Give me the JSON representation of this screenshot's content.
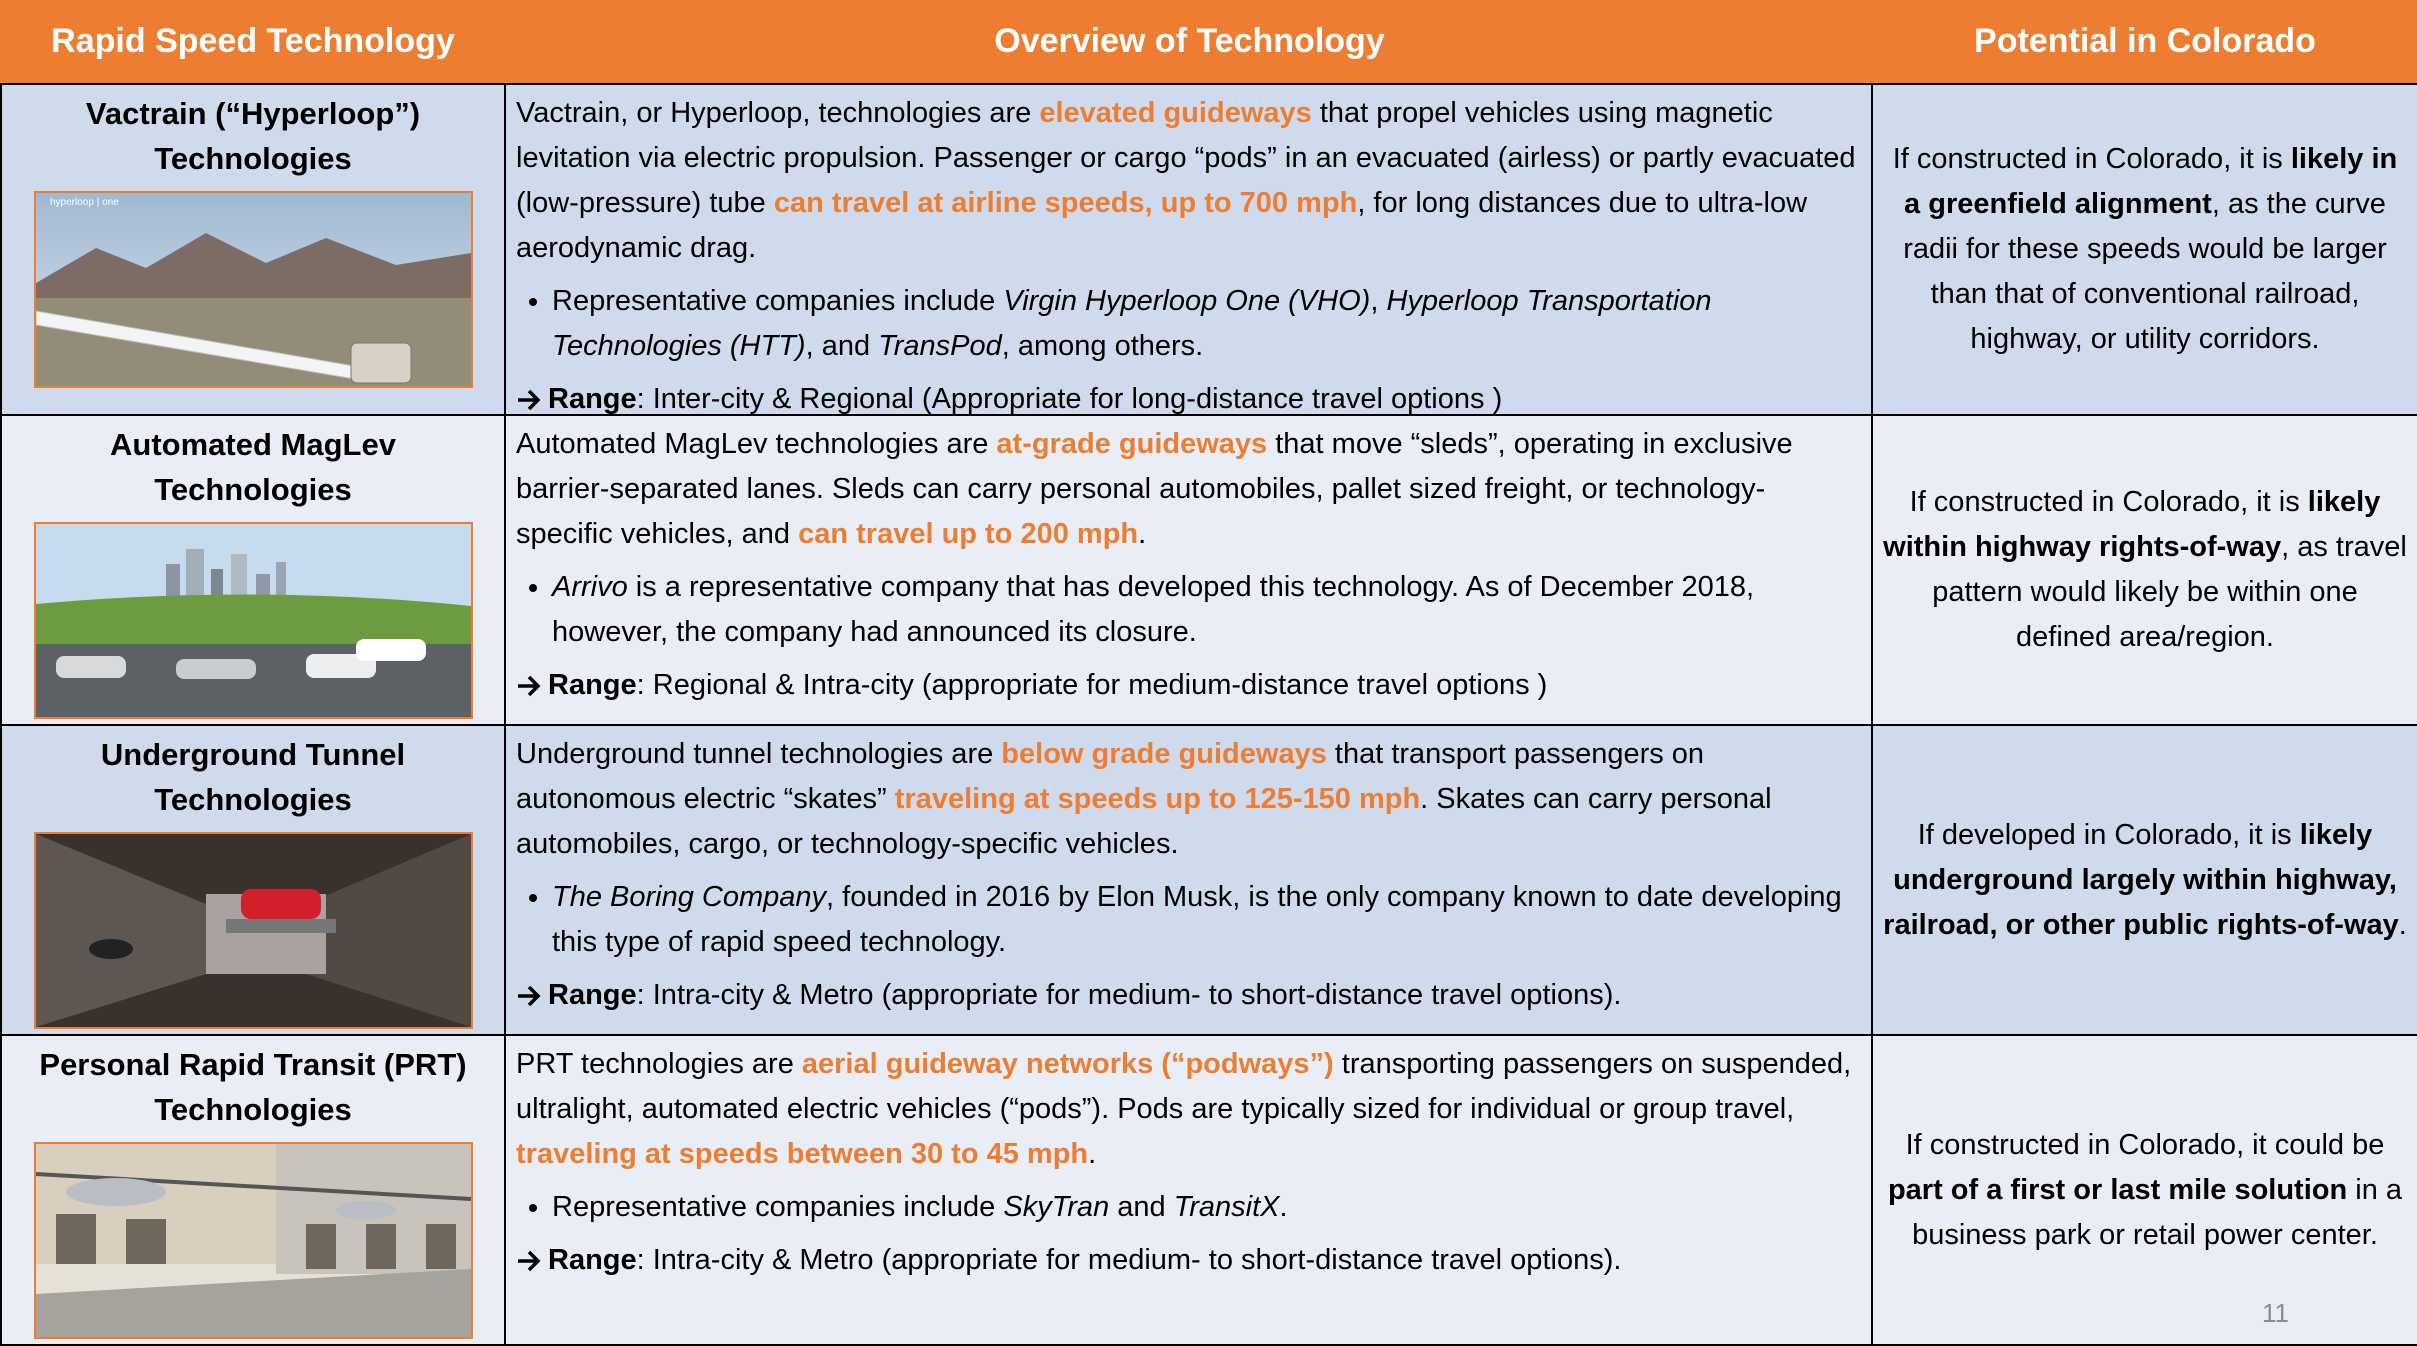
{
  "header": [
    "Rapid Speed Technology",
    "Overview of Technology",
    "Potential in Colorado"
  ],
  "rows": [
    {
      "technology": "Vactrain (“Hyperloop”) Technologies",
      "image_text": "hyperloop | one",
      "overview": [
        "Vactrain, or Hyperloop, technologies are ",
        {
          "text": "elevated guideways",
          "style": "orange"
        },
        " that propel vehicles using magnetic levitation via electric propulsion. Passenger or cargo “pods” in an evacuated (airless) or partly evacuated (low-pressure) tube ",
        {
          "text": "can travel at airline speeds, up to 700 mph",
          "style": "orange"
        },
        ", for long distances due to ultra-low aerodynamic drag."
      ],
      "bullet": [
        "Representative companies include ",
        {
          "text": "Virgin Hyperloop One (VHO)",
          "style": "italic"
        },
        ", ",
        {
          "text": "Hyperloop Transportation Technologies (HTT)",
          "style": "italic"
        },
        ", and ",
        {
          "text": "TransPod",
          "style": "italic"
        },
        ", among others."
      ],
      "range_label": "Range",
      "range_text": ": Inter-city & Regional (Appropriate for long-distance travel options )",
      "potential": [
        "If constructed in Colorado, it is ",
        {
          "text": "likely in a greenfield alignment",
          "style": "bold"
        },
        ", as the curve radii for these speeds would be larger than that of conventional railroad, highway, or utility corridors."
      ]
    },
    {
      "technology": "Automated MagLev Technologies",
      "overview": [
        "Automated MagLev technologies are ",
        {
          "text": "at-grade guideways",
          "style": "orange"
        },
        " that move “sleds”, operating in exclusive barrier-separated lanes. Sleds can carry personal automobiles, pallet sized freight, or technology-specific vehicles, and ",
        {
          "text": "can travel up to 200 mph",
          "style": "orange"
        },
        "."
      ],
      "bullet": [
        {
          "text": "Arrivo",
          "style": "italic"
        },
        " is a representative company that has developed this technology. As of December 2018, however, the company had announced its closure."
      ],
      "range_label": "Range",
      "range_text": ": Regional & Intra-city (appropriate for medium-distance travel options )",
      "potential": [
        "If constructed in Colorado, it is ",
        {
          "text": "likely within highway rights-of-way",
          "style": "bold"
        },
        ", as travel pattern would likely be within one defined area/region."
      ]
    },
    {
      "technology": "Underground Tunnel Technologies",
      "overview": [
        "Underground tunnel technologies are ",
        {
          "text": "below grade guideways",
          "style": "orange"
        },
        " that transport passengers on autonomous electric “skates” ",
        {
          "text": "traveling at speeds up to 125-150 mph",
          "style": "orange"
        },
        ". Skates can carry personal automobiles, cargo, or technology-specific vehicles."
      ],
      "bullet": [
        {
          "text": "The Boring Company",
          "style": "italic"
        },
        ", founded in 2016 by Elon Musk, is the only company known to date developing this type of rapid speed technology."
      ],
      "range_label": "Range",
      "range_text": ": Intra-city & Metro (appropriate for medium- to short-distance travel options).",
      "potential": [
        "If developed in Colorado, it is ",
        {
          "text": "likely underground largely within highway, railroad, or other public rights-of-way",
          "style": "bold"
        },
        "."
      ]
    },
    {
      "technology": "Personal Rapid Transit (PRT) Technologies",
      "overview": [
        "PRT technologies are ",
        {
          "text": "aerial guideway networks (“podways”)",
          "style": "orange"
        },
        " transporting passengers on suspended, ultralight, automated electric vehicles (“pods”). Pods are typically sized for individual or group travel, ",
        {
          "text": "traveling at speeds between 30 to 45 mph",
          "style": "orange"
        },
        "."
      ],
      "bullet": [
        "Representative companies include ",
        {
          "text": "SkyTran",
          "style": "italic"
        },
        " and ",
        {
          "text": "TransitX",
          "style": "italic"
        },
        "."
      ],
      "range_label": "Range",
      "range_text": ": Intra-city & Metro (appropriate for medium- to short-distance travel options).",
      "potential": [
        "If constructed in Colorado, it could be ",
        {
          "text": "part of a first or last mile solution",
          "style": "bold"
        },
        " in a business park or retail power center."
      ]
    }
  ],
  "page_number": "11"
}
